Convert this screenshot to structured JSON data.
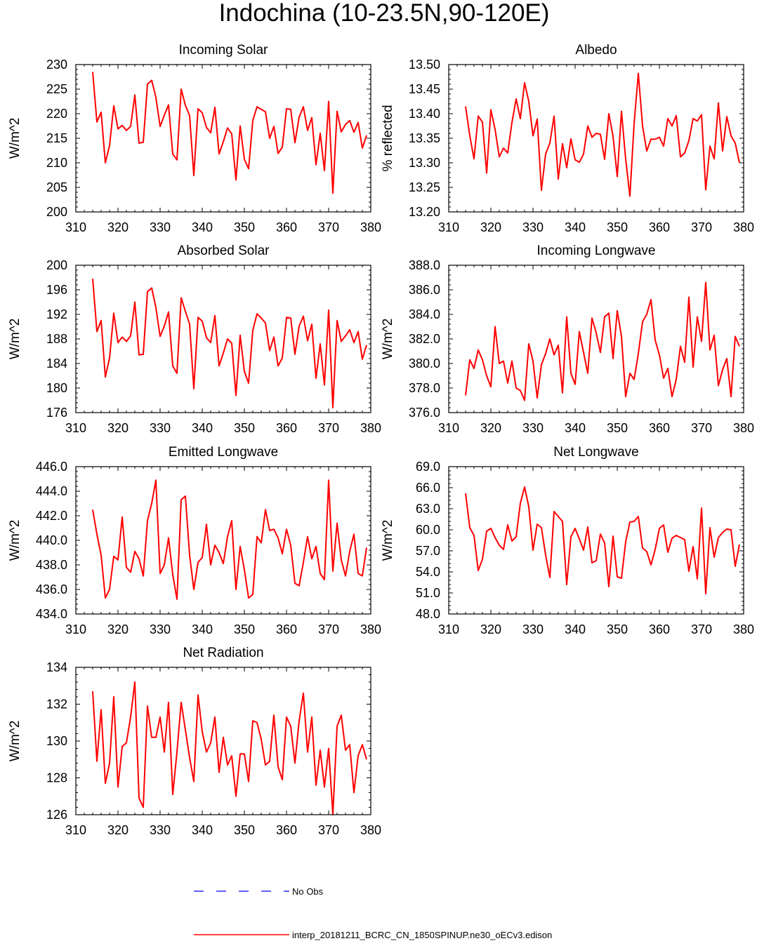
{
  "title": "Indochina (10-23.5N,90-120E)",
  "legend": {
    "obs_label": "No Obs",
    "obs_color": "#0000ff",
    "model_label": "interp_20181211_BCRC_CN_1850SPINUP.ne30_oECv3.edison",
    "model_color": "#ff0000"
  },
  "chart_data": [
    {
      "type": "line",
      "title": "Incoming Solar",
      "ylabel": "W/m^2",
      "xlim": [
        310,
        380
      ],
      "ylim": [
        200,
        230
      ],
      "xticks": [
        "310",
        "320",
        "330",
        "340",
        "350",
        "360",
        "370",
        "380"
      ],
      "yticks": [
        "200",
        "205",
        "210",
        "215",
        "220",
        "225",
        "230"
      ],
      "grid": false,
      "x_start": 314,
      "values": [
        228.5,
        218.3,
        220.3,
        210.0,
        213.5,
        221.6,
        216.9,
        217.6,
        216.6,
        217.4,
        223.8,
        214.0,
        214.2,
        226.0,
        226.8,
        223.3,
        217.4,
        219.7,
        221.8,
        211.8,
        210.6,
        225.0,
        221.7,
        219.6,
        207.4,
        221.0,
        220.2,
        217.2,
        216.1,
        221.3,
        211.8,
        214.3,
        217.1,
        215.9,
        206.5,
        217.5,
        210.7,
        208.8,
        218.6,
        221.4,
        220.9,
        220.4,
        215.0,
        217.4,
        211.9,
        213.2,
        221.0,
        220.9,
        214.1,
        219.3,
        221.4,
        216.6,
        219.2,
        209.6,
        216.0,
        208.4,
        222.5,
        203.8,
        220.5,
        216.3,
        217.8,
        218.6,
        216.2,
        218.2,
        213.0,
        215.6
      ]
    },
    {
      "type": "line",
      "title": "Albedo",
      "ylabel": "% reflected",
      "xlim": [
        310,
        380
      ],
      "ylim": [
        13.2,
        13.5
      ],
      "xticks": [
        "310",
        "320",
        "330",
        "340",
        "350",
        "360",
        "370",
        "380"
      ],
      "yticks": [
        "13.20",
        "13.25",
        "13.30",
        "13.35",
        "13.40",
        "13.45",
        "13.50"
      ],
      "grid": false,
      "x_start": 314,
      "values": [
        13.415,
        13.355,
        13.308,
        13.395,
        13.383,
        13.279,
        13.408,
        13.368,
        13.312,
        13.33,
        13.32,
        13.382,
        13.43,
        13.39,
        13.463,
        13.425,
        13.355,
        13.389,
        13.244,
        13.318,
        13.34,
        13.395,
        13.267,
        13.339,
        13.29,
        13.349,
        13.306,
        13.301,
        13.318,
        13.375,
        13.352,
        13.36,
        13.358,
        13.307,
        13.4,
        13.354,
        13.272,
        13.405,
        13.307,
        13.232,
        13.38,
        13.482,
        13.375,
        13.324,
        13.348,
        13.348,
        13.352,
        13.334,
        13.39,
        13.375,
        13.396,
        13.312,
        13.32,
        13.345,
        13.39,
        13.385,
        13.398,
        13.245,
        13.334,
        13.308,
        13.422,
        13.324,
        13.394,
        13.355,
        13.34,
        13.3
      ]
    },
    {
      "type": "line",
      "title": "Absorbed Solar",
      "ylabel": "W/m^2",
      "xlim": [
        310,
        380
      ],
      "ylim": [
        176,
        200
      ],
      "xticks": [
        "310",
        "320",
        "330",
        "340",
        "350",
        "360",
        "370",
        "380"
      ],
      "yticks": [
        "176",
        "180",
        "184",
        "188",
        "192",
        "196",
        "200"
      ],
      "grid": false,
      "x_start": 314,
      "values": [
        197.8,
        189.2,
        191.0,
        181.8,
        184.9,
        192.2,
        187.4,
        188.3,
        187.6,
        188.5,
        194.0,
        185.4,
        185.5,
        195.7,
        196.3,
        193.1,
        188.4,
        190.1,
        192.4,
        183.6,
        182.4,
        194.7,
        192.5,
        190.4,
        179.9,
        191.5,
        190.9,
        188.2,
        187.4,
        191.8,
        183.6,
        185.7,
        188.0,
        187.3,
        178.8,
        188.6,
        182.7,
        180.8,
        189.4,
        192.1,
        191.4,
        190.6,
        186.1,
        188.3,
        183.6,
        184.9,
        191.5,
        191.4,
        185.5,
        190.1,
        191.7,
        187.7,
        190.4,
        181.6,
        187.2,
        180.5,
        192.7,
        176.8,
        191.0,
        187.6,
        188.5,
        189.5,
        187.4,
        189.2,
        184.7,
        187.0
      ]
    },
    {
      "type": "line",
      "title": "Incoming Longwave",
      "ylabel": "W/m^2",
      "xlim": [
        310,
        380
      ],
      "ylim": [
        376,
        388
      ],
      "xticks": [
        "310",
        "320",
        "330",
        "340",
        "350",
        "360",
        "370",
        "380"
      ],
      "yticks": [
        "376.0",
        "378.0",
        "380.0",
        "382.0",
        "384.0",
        "386.0",
        "388.0"
      ],
      "grid": false,
      "x_start": 314,
      "values": [
        377.4,
        380.3,
        379.6,
        381.1,
        380.3,
        379.0,
        378.1,
        383.0,
        380.0,
        380.2,
        378.4,
        380.2,
        378.0,
        377.8,
        377.0,
        381.6,
        380.2,
        377.2,
        379.9,
        380.8,
        382.0,
        380.7,
        381.5,
        377.6,
        383.8,
        379.2,
        378.3,
        382.6,
        380.9,
        379.2,
        383.7,
        382.5,
        380.9,
        383.8,
        384.1,
        380.4,
        384.3,
        382.2,
        377.3,
        379.2,
        378.7,
        380.8,
        383.4,
        384.0,
        385.2,
        381.9,
        380.7,
        378.8,
        379.6,
        377.3,
        378.7,
        381.4,
        380.1,
        385.4,
        379.7,
        383.8,
        381.8,
        386.6,
        381.1,
        382.3,
        378.2,
        379.5,
        380.4,
        377.3,
        382.2,
        381.4
      ]
    },
    {
      "type": "line",
      "title": "Emitted Longwave",
      "ylabel": "W/m^2",
      "xlim": [
        310,
        380
      ],
      "ylim": [
        434,
        446
      ],
      "xticks": [
        "310",
        "320",
        "330",
        "340",
        "350",
        "360",
        "370",
        "380"
      ],
      "yticks": [
        "434.0",
        "436.0",
        "438.0",
        "440.0",
        "442.0",
        "444.0",
        "446.0"
      ],
      "grid": false,
      "x_start": 314,
      "values": [
        442.5,
        440.5,
        438.8,
        435.3,
        436.0,
        438.7,
        438.4,
        441.9,
        437.8,
        437.4,
        439.1,
        438.5,
        437.1,
        441.6,
        443.0,
        444.9,
        437.3,
        438.0,
        440.2,
        437.2,
        435.2,
        443.3,
        443.6,
        438.8,
        436.0,
        438.2,
        438.6,
        441.3,
        438.0,
        439.6,
        439.0,
        438.1,
        440.3,
        441.6,
        436.0,
        439.5,
        437.6,
        435.3,
        435.6,
        440.3,
        439.8,
        442.5,
        440.8,
        440.9,
        440.2,
        438.9,
        440.9,
        439.6,
        436.5,
        436.3,
        438.2,
        440.3,
        438.5,
        439.5,
        437.3,
        436.8,
        444.9,
        437.5,
        441.4,
        438.4,
        437.1,
        439.1,
        440.5,
        437.3,
        437.1,
        439.4
      ]
    },
    {
      "type": "line",
      "title": "Net Longwave",
      "ylabel": "W/m^2",
      "xlim": [
        310,
        380
      ],
      "ylim": [
        48,
        69
      ],
      "xticks": [
        "310",
        "320",
        "330",
        "340",
        "350",
        "360",
        "370",
        "380"
      ],
      "yticks": [
        "48.0",
        "51.0",
        "54.0",
        "57.0",
        "60.0",
        "63.0",
        "66.0",
        "69.0"
      ],
      "grid": false,
      "x_start": 314,
      "values": [
        65.2,
        60.3,
        59.2,
        54.2,
        55.8,
        59.8,
        60.2,
        58.9,
        57.8,
        57.2,
        60.7,
        58.4,
        59.0,
        63.8,
        66.1,
        63.3,
        57.1,
        60.8,
        60.3,
        56.4,
        53.2,
        62.6,
        61.9,
        61.2,
        52.2,
        59.0,
        60.2,
        58.7,
        57.1,
        60.4,
        55.3,
        55.6,
        59.4,
        58.1,
        51.9,
        59.1,
        53.3,
        53.1,
        58.3,
        61.1,
        61.2,
        61.9,
        57.4,
        56.9,
        55.0,
        57.2,
        60.2,
        60.7,
        56.8,
        58.8,
        59.2,
        58.9,
        58.6,
        54.1,
        57.6,
        53.0,
        63.1,
        50.9,
        60.3,
        56.1,
        58.9,
        59.6,
        60.1,
        60.0,
        54.8,
        57.9
      ]
    },
    {
      "type": "line",
      "title": "Net Radiation",
      "ylabel": "W/m^2",
      "xlim": [
        310,
        380
      ],
      "ylim": [
        126,
        134
      ],
      "xticks": [
        "310",
        "320",
        "330",
        "340",
        "350",
        "360",
        "370",
        "380"
      ],
      "yticks": [
        "126",
        "128",
        "130",
        "132",
        "134"
      ],
      "grid": false,
      "x_start": 314,
      "values": [
        132.7,
        128.9,
        131.7,
        127.7,
        128.8,
        132.4,
        127.5,
        129.7,
        129.9,
        131.3,
        133.2,
        126.9,
        126.4,
        131.9,
        130.2,
        130.2,
        131.3,
        129.4,
        132.1,
        127.1,
        129.4,
        132.1,
        130.6,
        129.1,
        127.8,
        132.5,
        130.5,
        129.4,
        129.9,
        131.3,
        128.3,
        130.2,
        128.7,
        129.2,
        127.0,
        129.3,
        129.3,
        127.8,
        131.1,
        131.0,
        130.1,
        128.7,
        128.9,
        131.4,
        128.6,
        127.9,
        131.3,
        130.8,
        128.8,
        131.1,
        132.6,
        129.4,
        131.3,
        127.6,
        129.5,
        127.5,
        129.6,
        126.0,
        130.8,
        131.4,
        129.5,
        129.8,
        127.2,
        129.2,
        129.8,
        129.0
      ]
    }
  ]
}
